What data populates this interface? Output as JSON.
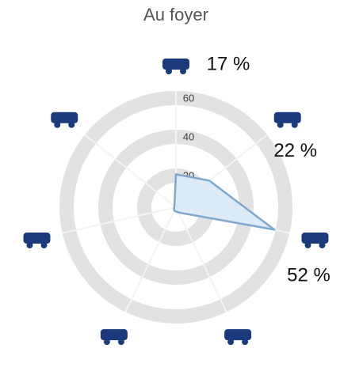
{
  "chart_data": {
    "type": "radar",
    "title": "Au foyer",
    "categories": [
      null,
      null,
      null,
      null,
      null,
      null,
      null
    ],
    "values": [
      17,
      22,
      52,
      3,
      2,
      1,
      1
    ],
    "value_labels": [
      "17 %",
      "22 %",
      "52 %",
      null,
      null,
      null,
      null
    ],
    "color": "#7fa8d0",
    "fill": "#dcebf7",
    "icon_color": "#1b3a7c",
    "rlim": [
      0,
      60
    ],
    "rticks": [
      20,
      40,
      60
    ],
    "grid": true
  }
}
